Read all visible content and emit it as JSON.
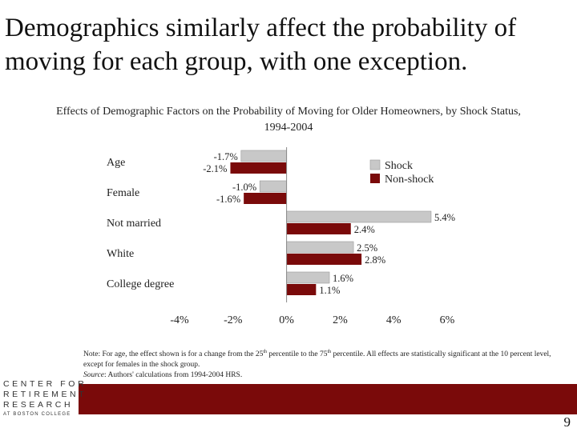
{
  "slide": {
    "title": "Demographics similarly affect the probability of moving for each group, with one exception.",
    "page_number": "9"
  },
  "note": {
    "prefix": "Note: For age, the effect shown is for a change from the 25",
    "sup1": "th",
    "middle": " percentile to the 75",
    "sup2": "th",
    "suffix": " percentile.  All effects are statistically significant at the 10 percent level, except for females in the shock group.",
    "source_label": "Source",
    "source_text": ": Authors' calculations from 1994-2004 HRS."
  },
  "logo": {
    "line1": "CENTER FOR",
    "line2": "RETIREMENT",
    "line3": "RESEARCH",
    "line4": "AT BOSTON COLLEGE"
  },
  "chart_data": {
    "type": "bar",
    "orientation": "horizontal",
    "title": "Effects of Demographic Factors on the Probability of Moving for Older Homeowners, by Shock Status, 1994-2004",
    "categories": [
      "Age",
      "Female",
      "Not married",
      "White",
      "College degree"
    ],
    "series": [
      {
        "name": "Shock",
        "color": "#c8c8c8",
        "values": [
          -1.7,
          -1.0,
          5.4,
          2.5,
          1.6
        ],
        "labels": [
          "-1.7%",
          "-1.0%",
          "5.4%",
          "2.5%",
          "1.6%"
        ]
      },
      {
        "name": "Non-shock",
        "color": "#7a0a0a",
        "values": [
          -2.1,
          -1.6,
          2.4,
          2.8,
          1.1
        ],
        "labels": [
          "-2.1%",
          "-1.6%",
          "2.4%",
          "2.8%",
          "1.1%"
        ]
      }
    ],
    "xlim": [
      -4,
      6
    ],
    "xticks": [
      -4,
      -2,
      0,
      2,
      4,
      6
    ],
    "xtick_labels": [
      "-4%",
      "-2%",
      "0%",
      "2%",
      "4%",
      "6%"
    ],
    "legend_position": "top-right",
    "grid": false
  }
}
